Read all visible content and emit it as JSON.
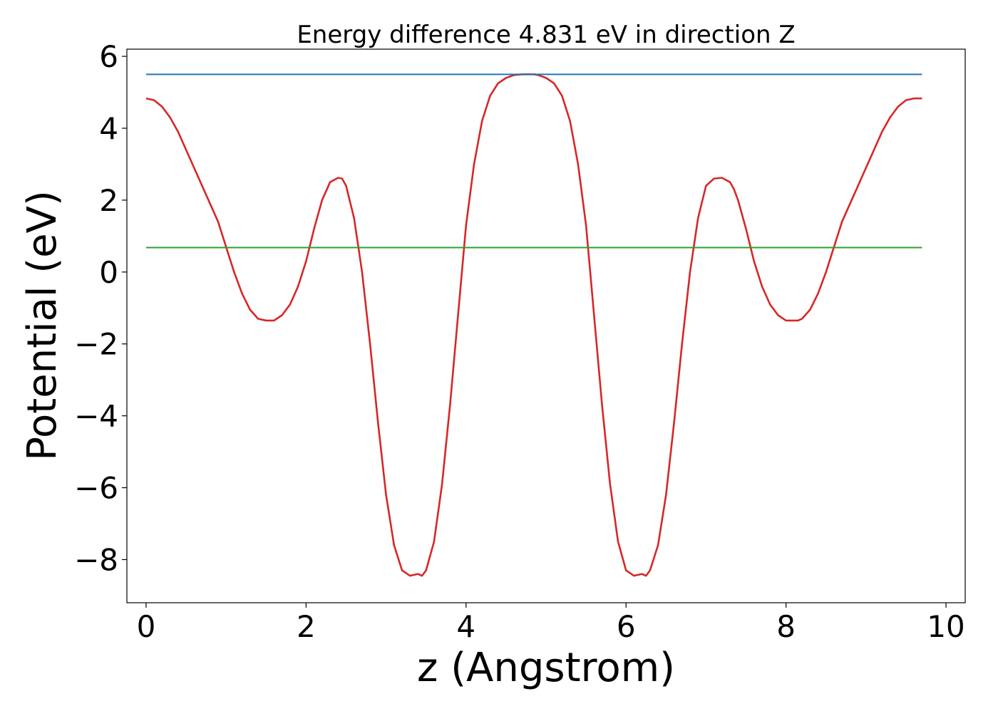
{
  "chart_data": {
    "type": "line",
    "title": "Energy difference 4.831 eV in direction Z",
    "xlabel": "z (Angstrom)",
    "ylabel": "Potential (eV)",
    "xlim": [
      -0.24,
      10.24
    ],
    "ylim": [
      -9.2,
      6.2
    ],
    "xticks": [
      0,
      2,
      4,
      6,
      8,
      10
    ],
    "xtick_labels": [
      "0",
      "2",
      "4",
      "6",
      "8",
      "10"
    ],
    "yticks": [
      6,
      4,
      2,
      0,
      -2,
      -4,
      -6,
      -8
    ],
    "ytick_labels": [
      "6",
      "4",
      "2",
      "0",
      "−2",
      "−4",
      "−6",
      "−8"
    ],
    "grid": false,
    "legend": "none",
    "series": [
      {
        "color": "#d62728",
        "x": [
          0.0,
          0.1,
          0.2,
          0.3,
          0.4,
          0.5,
          0.6,
          0.7,
          0.8,
          0.9,
          1.0,
          1.1,
          1.2,
          1.3,
          1.4,
          1.5,
          1.6,
          1.7,
          1.8,
          1.9,
          2.0,
          2.1,
          2.2,
          2.3,
          2.4,
          2.45,
          2.5,
          2.6,
          2.7,
          2.8,
          2.9,
          3.0,
          3.1,
          3.2,
          3.3,
          3.4,
          3.45,
          3.5,
          3.6,
          3.7,
          3.8,
          3.9,
          4.0,
          4.1,
          4.2,
          4.3,
          4.4,
          4.5,
          4.6,
          4.7,
          4.8,
          4.85,
          4.9,
          5.0,
          5.1,
          5.2,
          5.3,
          5.4,
          5.5,
          5.6,
          5.7,
          5.8,
          5.9,
          6.0,
          6.1,
          6.2,
          6.25,
          6.3,
          6.4,
          6.5,
          6.6,
          6.7,
          6.8,
          6.9,
          7.0,
          7.1,
          7.2,
          7.3,
          7.35,
          7.4,
          7.5,
          7.6,
          7.7,
          7.8,
          7.9,
          8.0,
          8.1,
          8.15,
          8.2,
          8.3,
          8.4,
          8.5,
          8.6,
          8.7,
          8.8,
          8.9,
          9.0,
          9.1,
          9.2,
          9.3,
          9.4,
          9.5,
          9.6,
          9.7
        ],
        "y": [
          4.83,
          4.78,
          4.6,
          4.3,
          3.9,
          3.4,
          2.9,
          2.4,
          1.9,
          1.4,
          0.7,
          0.0,
          -0.6,
          -1.05,
          -1.3,
          -1.35,
          -1.35,
          -1.2,
          -0.9,
          -0.4,
          0.3,
          1.2,
          2.0,
          2.5,
          2.62,
          2.6,
          2.4,
          1.5,
          0.0,
          -2.0,
          -4.2,
          -6.2,
          -7.6,
          -8.3,
          -8.45,
          -8.4,
          -8.45,
          -8.3,
          -7.5,
          -5.9,
          -3.7,
          -1.2,
          1.3,
          3.0,
          4.2,
          4.9,
          5.25,
          5.4,
          5.48,
          5.5,
          5.5,
          5.5,
          5.48,
          5.4,
          5.25,
          4.9,
          4.2,
          3.0,
          1.3,
          -1.2,
          -3.7,
          -5.9,
          -7.5,
          -8.3,
          -8.45,
          -8.4,
          -8.45,
          -8.3,
          -7.6,
          -6.2,
          -4.2,
          -2.0,
          0.0,
          1.5,
          2.4,
          2.6,
          2.62,
          2.5,
          2.3,
          2.0,
          1.2,
          0.3,
          -0.4,
          -0.9,
          -1.2,
          -1.35,
          -1.35,
          -1.35,
          -1.3,
          -1.05,
          -0.6,
          0.0,
          0.7,
          1.4,
          1.9,
          2.4,
          2.9,
          3.4,
          3.9,
          4.3,
          4.6,
          4.78,
          4.83,
          4.83
        ]
      },
      {
        "color": "#1f77b4",
        "x": [
          0.0,
          9.7
        ],
        "y": [
          5.5,
          5.5
        ]
      },
      {
        "color": "#2ca02c",
        "x": [
          0.0,
          9.7
        ],
        "y": [
          0.68,
          0.68
        ]
      }
    ]
  }
}
